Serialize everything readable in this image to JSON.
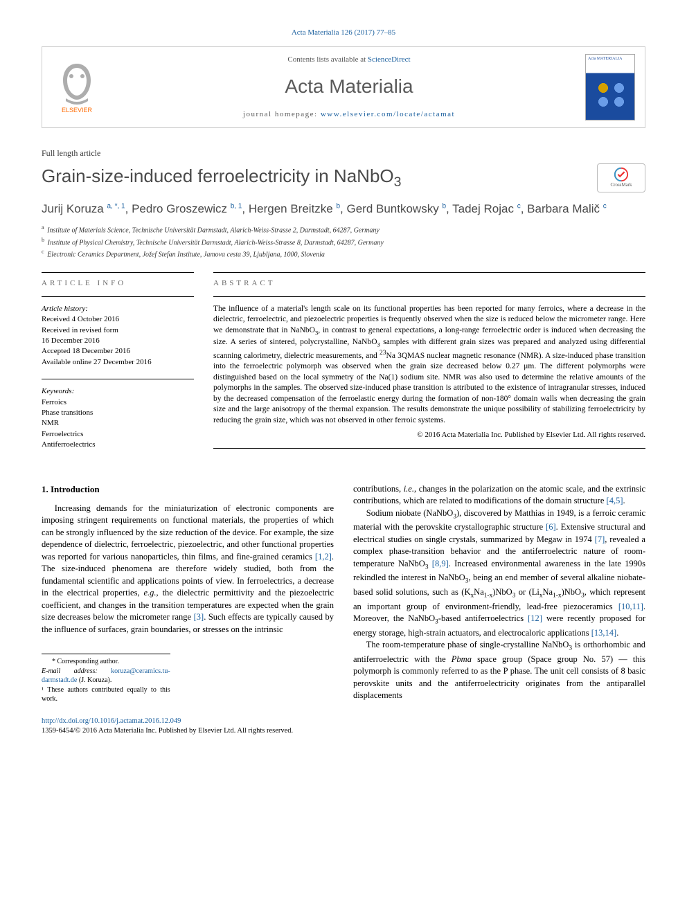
{
  "citation": "Acta Materialia 126 (2017) 77–85",
  "header": {
    "contents_prefix": "Contents lists available at ",
    "contents_link": "ScienceDirect",
    "journal_name": "Acta Materialia",
    "homepage_prefix": "journal homepage: ",
    "homepage_url": "www.elsevier.com/locate/actamat",
    "elsevier_label": "ELSEVIER"
  },
  "article_type": "Full length article",
  "title": "Grain-size-induced ferroelectricity in NaNbO₃",
  "crossmark_label": "CrossMark",
  "authors_html": "Jurij Koruza <sup><a>a, *, 1</a></sup>, Pedro Groszewicz <sup><a>b, 1</a></sup>, Hergen Breitzke <sup><a>b</a></sup>, Gerd Buntkowsky <sup><a>b</a></sup>, Tadej Rojac <sup><a>c</a></sup>, Barbara Malič <sup><a>c</a></sup>",
  "affiliations": [
    "Institute of Materials Science, Technische Universität Darmstadt, Alarich-Weiss-Strasse 2, Darmstadt, 64287, Germany",
    "Institute of Physical Chemistry, Technische Universität Darmstadt, Alarich-Weiss-Strasse 8, Darmstadt, 64287, Germany",
    "Electronic Ceramics Department, Jožef Stefan Institute, Jamova cesta 39, Ljubljana, 1000, Slovenia"
  ],
  "affiliation_markers": [
    "a",
    "b",
    "c"
  ],
  "info": {
    "heading": "ARTICLE INFO",
    "history_label": "Article history:",
    "history": [
      "Received 4 October 2016",
      "Received in revised form",
      "16 December 2016",
      "Accepted 18 December 2016",
      "Available online 27 December 2016"
    ],
    "keywords_label": "Keywords:",
    "keywords": [
      "Ferroics",
      "Phase transitions",
      "NMR",
      "Ferroelectrics",
      "Antiferroelectrics"
    ]
  },
  "abstract": {
    "heading": "ABSTRACT",
    "text": "The influence of a material's length scale on its functional properties has been reported for many ferroics, where a decrease in the dielectric, ferroelectric, and piezoelectric properties is frequently observed when the size is reduced below the micrometer range. Here we demonstrate that in NaNbO₃, in contrast to general expectations, a long-range ferroelectric order is induced when decreasing the size. A series of sintered, polycrystalline, NaNbO₃ samples with different grain sizes was prepared and analyzed using differential scanning calorimetry, dielectric measurements, and ²³Na 3QMAS nuclear magnetic resonance (NMR). A size-induced phase transition into the ferroelectric polymorph was observed when the grain size decreased below 0.27 μm. The different polymorphs were distinguished based on the local symmetry of the Na(1) sodium site. NMR was also used to determine the relative amounts of the polymorphs in the samples. The observed size-induced phase transition is attributed to the existence of intragranular stresses, induced by the decreased compensation of the ferroelastic energy during the formation of non-180° domain walls when decreasing the grain size and the large anisotropy of the thermal expansion. The results demonstrate the unique possibility of stabilizing ferroelectricity by reducing the grain size, which was not observed in other ferroic systems.",
    "copyright": "© 2016 Acta Materialia Inc. Published by Elsevier Ltd. All rights reserved."
  },
  "body": {
    "heading": "1. Introduction",
    "p1": "Increasing demands for the miniaturization of electronic components are imposing stringent requirements on functional materials, the properties of which can be strongly influenced by the size reduction of the device. For example, the size dependence of dielectric, ferroelectric, piezoelectric, and other functional properties was reported for various nanoparticles, thin films, and fine-grained ceramics [1,2]. The size-induced phenomena are therefore widely studied, both from the fundamental scientific and applications points of view. In ferroelectrics, a decrease in the electrical properties, e.g., the dielectric permittivity and the piezoelectric coefficient, and changes in the transition temperatures are expected when the grain size decreases below the micrometer range [3]. Such effects are typically caused by the influence of surfaces, grain boundaries, or stresses on the intrinsic",
    "p2": "contributions, i.e., changes in the polarization on the atomic scale, and the extrinsic contributions, which are related to modifications of the domain structure [4,5].",
    "p3": "Sodium niobate (NaNbO₃), discovered by Matthias in 1949, is a ferroic ceramic material with the perovskite crystallographic structure [6]. Extensive structural and electrical studies on single crystals, summarized by Megaw in 1974 [7], revealed a complex phase-transition behavior and the antiferroelectric nature of room-temperature NaNbO₃ [8,9]. Increased environmental awareness in the late 1990s rekindled the interest in NaNbO₃, being an end member of several alkaline niobate-based solid solutions, such as (KₓNa₁₋ₓ)NbO₃ or (LiₓNa₁₋ₓ)NbO₃, which represent an important group of environment-friendly, lead-free piezoceramics [10,11]. Moreover, the NaNbO₃-based antiferroelectrics [12] were recently proposed for energy storage, high-strain actuators, and electrocaloric applications [13,14].",
    "p4": "The room-temperature phase of single-crystalline NaNbO₃ is orthorhombic and antiferroelectric with the Pbma space group (Space group No. 57) — this polymorph is commonly referred to as the P phase. The unit cell consists of 8 basic perovskite units and the antiferroelectricity originates from the antiparallel displacements"
  },
  "footnotes": {
    "corr": "* Corresponding author.",
    "email_label": "E-mail address:",
    "email": "koruza@ceramics.tu-darmstadt.de",
    "email_name": "(J. Koruza).",
    "equal": "¹ These authors contributed equally to this work."
  },
  "doi": {
    "url": "http://dx.doi.org/10.1016/j.actamat.2016.12.049",
    "issn_line": "1359-6454/© 2016 Acta Materialia Inc. Published by Elsevier Ltd. All rights reserved."
  },
  "colors": {
    "link": "#1a5f9e",
    "text": "#000000",
    "muted": "#5a5a5a",
    "elsevier_orange": "#ff6a00"
  }
}
